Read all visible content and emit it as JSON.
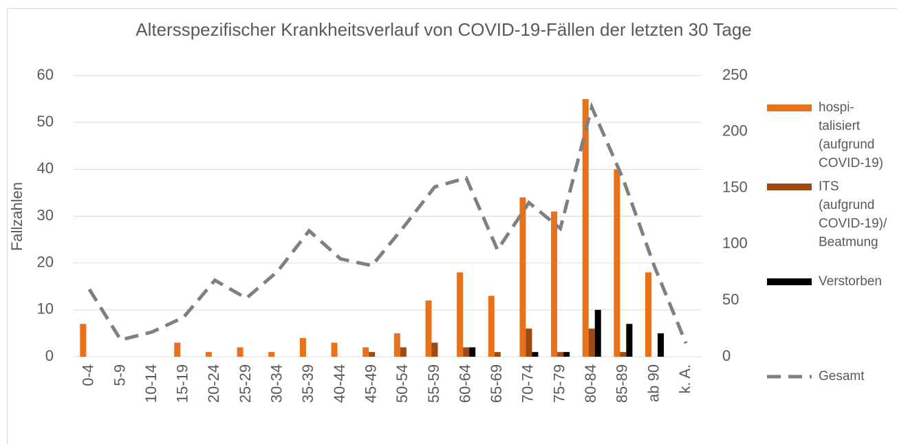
{
  "chart_data": {
    "type": "bar",
    "title": "Altersspezifischer Krankheitsverlauf von COVID-19-Fällen der letzten 30 Tage",
    "y_label": "Fallzahlen",
    "categories": [
      "0-4",
      "5-9",
      "10-14",
      "15-19",
      "20-24",
      "25-29",
      "30-34",
      "35-39",
      "40-44",
      "45-49",
      "50-54",
      "55-59",
      "60-64",
      "65-69",
      "70-74",
      "75-79",
      "80-84",
      "85-89",
      "ab 90",
      "k. A."
    ],
    "series": [
      {
        "name": "hospi-\ntalisiert\n(aufgrund\nCOVID-19)",
        "color": "#e8711a",
        "type": "bar",
        "values": [
          7,
          0,
          0,
          3,
          1,
          2,
          1,
          4,
          3,
          2,
          5,
          12,
          18,
          13,
          34,
          31,
          55,
          40,
          18,
          0
        ]
      },
      {
        "name": "ITS\n(aufgrund\nCOVID-19)/\nBeatmung",
        "color": "#9e4a12",
        "type": "bar",
        "values": [
          0,
          0,
          0,
          0,
          0,
          0,
          0,
          0,
          0,
          1,
          2,
          3,
          2,
          1,
          6,
          1,
          6,
          1,
          0,
          0
        ]
      },
      {
        "name": "Verstorben",
        "color": "#000000",
        "type": "bar",
        "values": [
          0,
          0,
          0,
          0,
          0,
          0,
          0,
          0,
          0,
          0,
          0,
          0,
          2,
          0,
          1,
          1,
          10,
          7,
          5,
          0
        ]
      },
      {
        "name": "Gesamt",
        "color": "#808080",
        "type": "line",
        "axis": "y2",
        "values": [
          60,
          15,
          22,
          35,
          68,
          52,
          76,
          112,
          87,
          81,
          115,
          151,
          159,
          95,
          137,
          114,
          222,
          158,
          80,
          12
        ]
      }
    ],
    "ylim": [
      0,
      60
    ],
    "yticks": [
      0,
      10,
      20,
      30,
      40,
      50,
      60
    ],
    "y2lim": [
      0,
      250
    ],
    "y2ticks": [
      0,
      50,
      100,
      150,
      200,
      250
    ],
    "grid": true,
    "legend": "right"
  }
}
